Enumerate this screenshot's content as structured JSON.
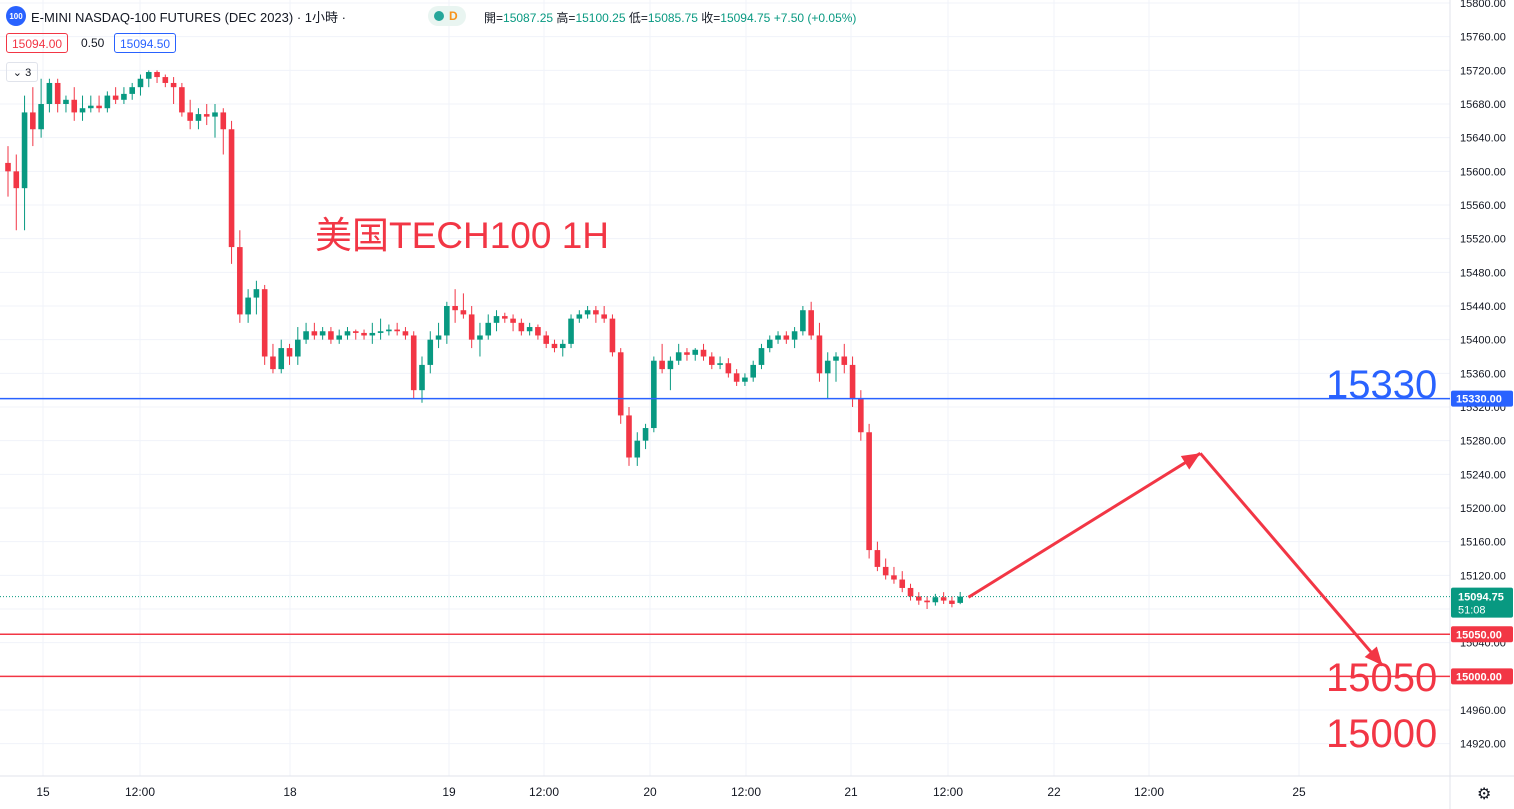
{
  "header": {
    "logo_text": "100",
    "symbol": "E-MINI NASDAQ-100 FUTURES (DEC 2023) · 1小時 ·",
    "status_letter": "D",
    "ohlc": {
      "open_label": "開=",
      "open": "15087.25",
      "high_label": "高=",
      "high": "15100.25",
      "low_label": "低=",
      "low": "15085.75",
      "close_label": "收=",
      "close": "15094.75",
      "change": "+7.50 (+0.05%)"
    },
    "bid": "15094.00",
    "spread": "0.50",
    "ask": "15094.50",
    "indicators_count": "3"
  },
  "chart_data": {
    "type": "candlestick",
    "title": "美国TECH100 1H",
    "y_axis": {
      "min": 14900,
      "max": 15800,
      "ticks": [
        "15800.00",
        "15760.00",
        "15720.00",
        "15680.00",
        "15640.00",
        "15600.00",
        "15560.00",
        "15520.00",
        "15480.00",
        "15440.00",
        "15400.00",
        "15360.00",
        "15320.00",
        "15280.00",
        "15240.00",
        "15200.00",
        "15160.00",
        "15120.00",
        "15080.00",
        "15040.00",
        "14960.00",
        "14920.00"
      ]
    },
    "x_axis": {
      "ticks": [
        "15",
        "12:00",
        "18",
        "19",
        "12:00",
        "20",
        "12:00",
        "21",
        "12:00",
        "22",
        "12:00",
        "25"
      ]
    },
    "current_price": {
      "value": 15094.75,
      "label": "15094.75",
      "countdown": "51:08",
      "color": "#089981"
    },
    "horizontal_lines": [
      {
        "value": 15330,
        "label": "15330.00",
        "big_label": "15330",
        "color": "#2962ff"
      },
      {
        "value": 15050,
        "label": "15050.00",
        "big_label": "15050",
        "color": "#f23645"
      },
      {
        "value": 15000,
        "label": "15000.00",
        "big_label": "15000",
        "color": "#f23645"
      }
    ],
    "up_color": "#089981",
    "down_color": "#f23645",
    "candles": [
      [
        15610,
        15630,
        15570,
        15600
      ],
      [
        15600,
        15620,
        15530,
        15580
      ],
      [
        15580,
        15690,
        15530,
        15670
      ],
      [
        15670,
        15700,
        15630,
        15650
      ],
      [
        15650,
        15710,
        15640,
        15680
      ],
      [
        15680,
        15710,
        15670,
        15705
      ],
      [
        15705,
        15710,
        15670,
        15680
      ],
      [
        15680,
        15690,
        15670,
        15685
      ],
      [
        15685,
        15700,
        15660,
        15670
      ],
      [
        15670,
        15690,
        15660,
        15675
      ],
      [
        15675,
        15690,
        15670,
        15678
      ],
      [
        15678,
        15690,
        15670,
        15675
      ],
      [
        15675,
        15695,
        15670,
        15690
      ],
      [
        15690,
        15700,
        15680,
        15685
      ],
      [
        15685,
        15700,
        15680,
        15692
      ],
      [
        15692,
        15705,
        15685,
        15700
      ],
      [
        15700,
        15715,
        15690,
        15710
      ],
      [
        15710,
        15720,
        15700,
        15718
      ],
      [
        15718,
        15720,
        15705,
        15712
      ],
      [
        15712,
        15715,
        15700,
        15705
      ],
      [
        15705,
        15712,
        15680,
        15700
      ],
      [
        15700,
        15705,
        15665,
        15670
      ],
      [
        15670,
        15685,
        15650,
        15660
      ],
      [
        15660,
        15675,
        15650,
        15668
      ],
      [
        15668,
        15680,
        15655,
        15665
      ],
      [
        15665,
        15680,
        15640,
        15670
      ],
      [
        15670,
        15675,
        15620,
        15650
      ],
      [
        15650,
        15660,
        15490,
        15510
      ],
      [
        15510,
        15530,
        15420,
        15430
      ],
      [
        15430,
        15460,
        15420,
        15450
      ],
      [
        15450,
        15470,
        15430,
        15460
      ],
      [
        15460,
        15465,
        15370,
        15380
      ],
      [
        15380,
        15395,
        15360,
        15365
      ],
      [
        15365,
        15400,
        15360,
        15390
      ],
      [
        15390,
        15395,
        15370,
        15380
      ],
      [
        15380,
        15415,
        15370,
        15400
      ],
      [
        15400,
        15420,
        15395,
        15410
      ],
      [
        15410,
        15420,
        15400,
        15405
      ],
      [
        15405,
        15415,
        15400,
        15410
      ],
      [
        15410,
        15415,
        15395,
        15400
      ],
      [
        15400,
        15412,
        15395,
        15405
      ],
      [
        15405,
        15415,
        15400,
        15410
      ],
      [
        15410,
        15412,
        15400,
        15408
      ],
      [
        15408,
        15412,
        15400,
        15405
      ],
      [
        15405,
        15420,
        15395,
        15408
      ],
      [
        15408,
        15425,
        15400,
        15410
      ],
      [
        15410,
        15418,
        15405,
        15412
      ],
      [
        15412,
        15420,
        15405,
        15410
      ],
      [
        15410,
        15415,
        15400,
        15405
      ],
      [
        15405,
        15410,
        15330,
        15340
      ],
      [
        15340,
        15380,
        15325,
        15370
      ],
      [
        15370,
        15410,
        15360,
        15400
      ],
      [
        15400,
        15420,
        15390,
        15405
      ],
      [
        15405,
        15445,
        15395,
        15440
      ],
      [
        15440,
        15460,
        15420,
        15435
      ],
      [
        15435,
        15455,
        15425,
        15430
      ],
      [
        15430,
        15440,
        15390,
        15400
      ],
      [
        15400,
        15420,
        15380,
        15405
      ],
      [
        15405,
        15430,
        15400,
        15420
      ],
      [
        15420,
        15435,
        15410,
        15428
      ],
      [
        15428,
        15432,
        15420,
        15425
      ],
      [
        15425,
        15430,
        15410,
        15420
      ],
      [
        15420,
        15425,
        15405,
        15410
      ],
      [
        15410,
        15420,
        15405,
        15415
      ],
      [
        15415,
        15418,
        15400,
        15405
      ],
      [
        15405,
        15410,
        15390,
        15395
      ],
      [
        15395,
        15400,
        15385,
        15390
      ],
      [
        15390,
        15400,
        15380,
        15395
      ],
      [
        15395,
        15430,
        15390,
        15425
      ],
      [
        15425,
        15435,
        15420,
        15430
      ],
      [
        15430,
        15440,
        15425,
        15435
      ],
      [
        15435,
        15440,
        15420,
        15430
      ],
      [
        15430,
        15440,
        15420,
        15425
      ],
      [
        15425,
        15430,
        15380,
        15385
      ],
      [
        15385,
        15390,
        15300,
        15310
      ],
      [
        15310,
        15320,
        15250,
        15260
      ],
      [
        15260,
        15290,
        15250,
        15280
      ],
      [
        15280,
        15300,
        15270,
        15295
      ],
      [
        15295,
        15380,
        15290,
        15375
      ],
      [
        15375,
        15395,
        15360,
        15365
      ],
      [
        15365,
        15380,
        15340,
        15375
      ],
      [
        15375,
        15395,
        15370,
        15385
      ],
      [
        15385,
        15390,
        15375,
        15382
      ],
      [
        15382,
        15390,
        15375,
        15388
      ],
      [
        15388,
        15395,
        15375,
        15380
      ],
      [
        15380,
        15385,
        15365,
        15370
      ],
      [
        15370,
        15380,
        15365,
        15372
      ],
      [
        15372,
        15378,
        15355,
        15360
      ],
      [
        15360,
        15365,
        15345,
        15350
      ],
      [
        15350,
        15360,
        15345,
        15355
      ],
      [
        15355,
        15375,
        15350,
        15370
      ],
      [
        15370,
        15395,
        15365,
        15390
      ],
      [
        15390,
        15405,
        15385,
        15400
      ],
      [
        15400,
        15410,
        15395,
        15405
      ],
      [
        15405,
        15410,
        15395,
        15400
      ],
      [
        15400,
        15415,
        15390,
        15410
      ],
      [
        15410,
        15440,
        15405,
        15435
      ],
      [
        15435,
        15445,
        15400,
        15405
      ],
      [
        15405,
        15420,
        15350,
        15360
      ],
      [
        15360,
        15385,
        15330,
        15375
      ],
      [
        15375,
        15385,
        15350,
        15380
      ],
      [
        15380,
        15395,
        15360,
        15370
      ],
      [
        15370,
        15380,
        15320,
        15330
      ],
      [
        15330,
        15340,
        15280,
        15290
      ],
      [
        15290,
        15300,
        15140,
        15150
      ],
      [
        15150,
        15160,
        15125,
        15130
      ],
      [
        15130,
        15140,
        15115,
        15120
      ],
      [
        15120,
        15130,
        15110,
        15115
      ],
      [
        15115,
        15125,
        15100,
        15105
      ],
      [
        15105,
        15110,
        15090,
        15095
      ],
      [
        15095,
        15100,
        15085,
        15090
      ],
      [
        15090,
        15095,
        15080,
        15088
      ],
      [
        15088,
        15098,
        15084,
        15094
      ],
      [
        15094,
        15100,
        15086,
        15090
      ],
      [
        15090,
        15095,
        15082,
        15086
      ],
      [
        15087.25,
        15100.25,
        15085.75,
        15094.75
      ]
    ],
    "annotations": [
      {
        "type": "arrow",
        "color": "#f23645",
        "from": [
          116,
          15094
        ],
        "to": [
          144,
          15265
        ]
      },
      {
        "type": "arrow",
        "color": "#f23645",
        "from": [
          144,
          15265
        ],
        "to": [
          166,
          15013
        ]
      }
    ]
  }
}
